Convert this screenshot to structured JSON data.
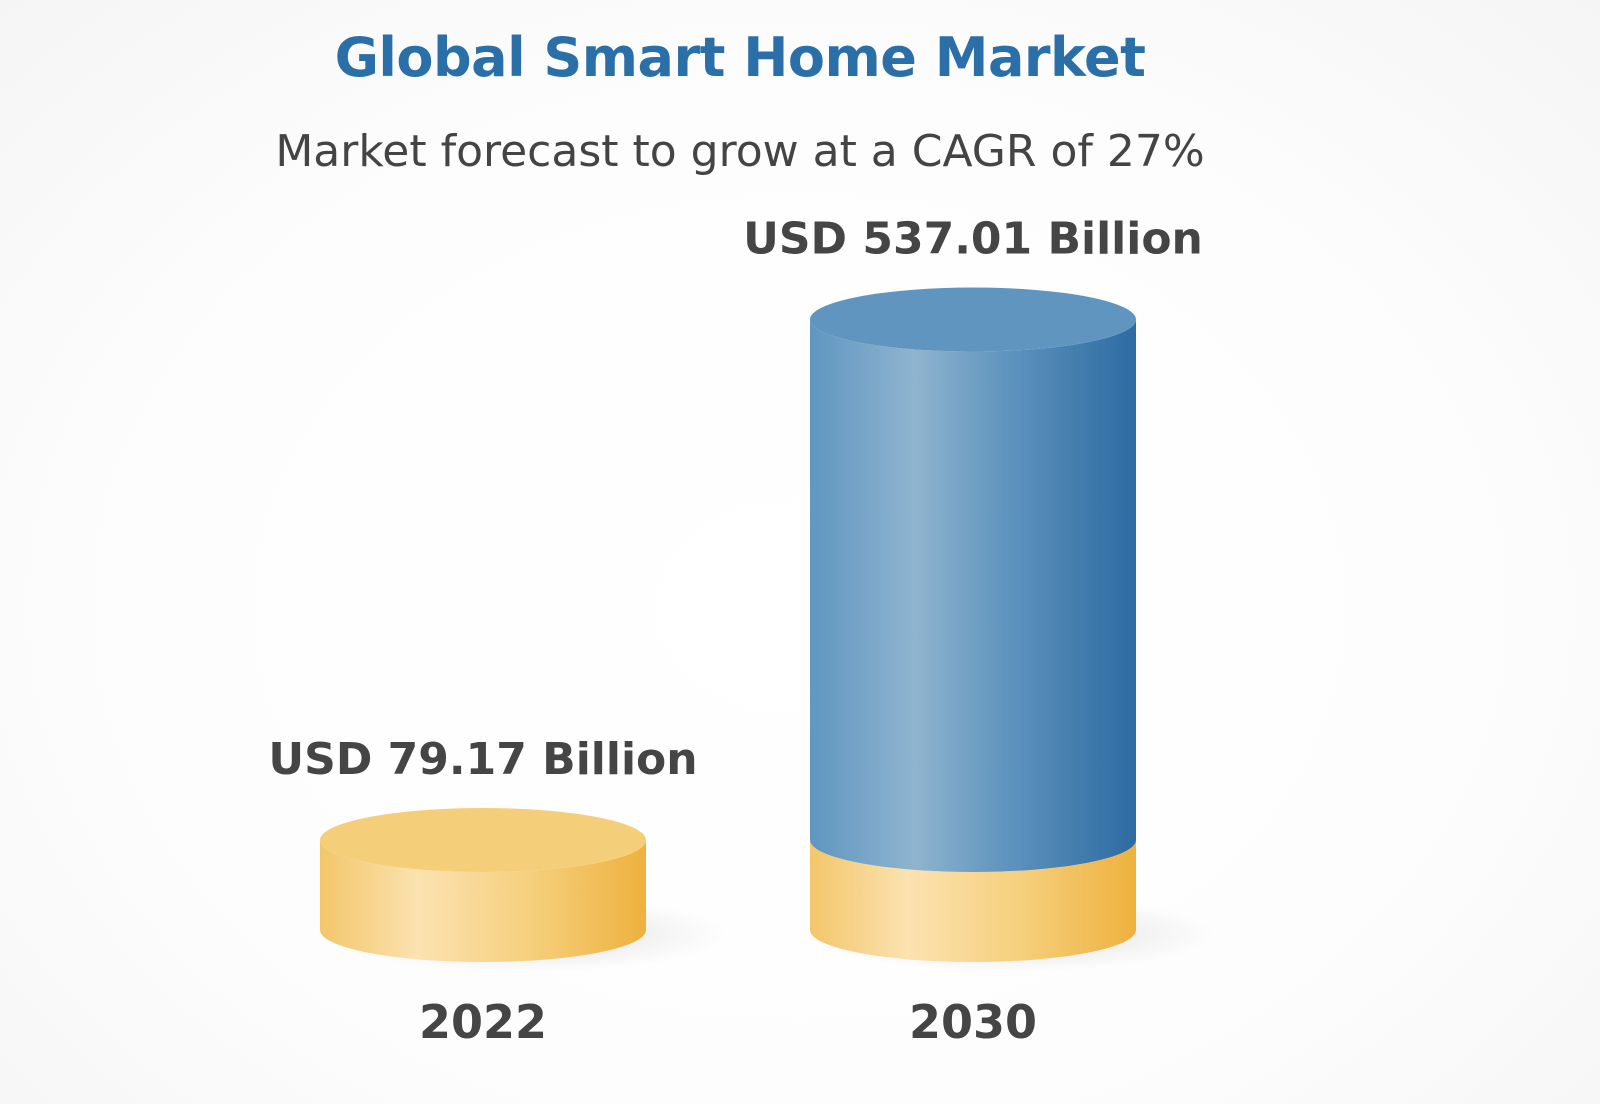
{
  "chart_data": {
    "type": "bar",
    "title": "Global Smart Home Market",
    "subtitle": "Market forecast to grow at a CAGR of 27%",
    "categories": [
      "2022",
      "2030"
    ],
    "values": [
      79.17,
      537.01
    ],
    "value_labels": [
      "USD 79.17 Billion",
      "USD 537.01 Billion"
    ],
    "base_value": 79.17,
    "units": "USD Billion",
    "cagr": "27%",
    "grid": false,
    "legend": "none",
    "colors": {
      "base": "#f2c15e",
      "growth": "#3a78ad",
      "title": "#2b6fa8",
      "text": "#454545"
    }
  }
}
